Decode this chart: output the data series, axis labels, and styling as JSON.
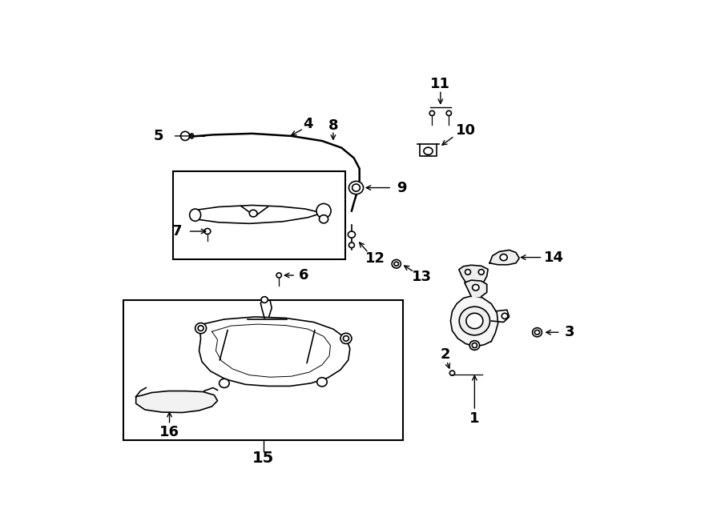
{
  "bg_color": "#ffffff",
  "line_color": "#000000",
  "fig_width": 9.0,
  "fig_height": 6.61,
  "dpi": 100,
  "label_fontsize": 13
}
